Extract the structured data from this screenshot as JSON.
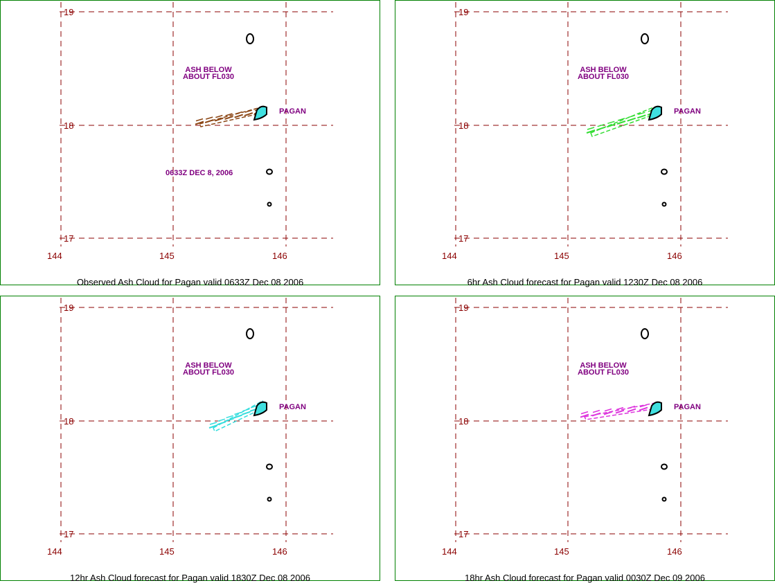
{
  "colors": {
    "grid": "#8b0000",
    "annotation": "#800080",
    "frame": "#008000",
    "island_fill": "#40e0e0"
  },
  "grid_labels": {
    "lat": [
      "19",
      "18",
      "17"
    ],
    "lon": [
      "144",
      "145",
      "146"
    ]
  },
  "panels": [
    {
      "caption": "Observed Ash Cloud for Pagan valid 0633Z Dec 08 2006",
      "ash_note_line1": "ASH BELOW",
      "ash_note_line2": "ABOUT FL030",
      "volcano_label": "PAGAN",
      "timestamp": "0633Z DEC 8, 2006",
      "ash_color": "#8b4513",
      "ash_plume": "west-southwest from Pagan, observed"
    },
    {
      "caption": "6hr Ash Cloud forecast for Pagan valid 1230Z Dec 08 2006",
      "ash_note_line1": "ASH BELOW",
      "ash_note_line2": "ABOUT FL030",
      "volcano_label": "PAGAN",
      "timestamp": "",
      "ash_color": "#33dd33",
      "ash_plume": "west-southwest from Pagan, 6hr"
    },
    {
      "caption": "12hr Ash Cloud forecast for Pagan valid 1830Z Dec 08 2006",
      "ash_note_line1": "ASH BELOW",
      "ash_note_line2": "ABOUT FL030",
      "volcano_label": "PAGAN",
      "timestamp": "",
      "ash_color": "#33dddd",
      "ash_plume": "southwest from Pagan, 12hr"
    },
    {
      "caption": "18hr Ash Cloud forecast for Pagan valid 0030Z Dec 09 2006",
      "ash_note_line1": "ASH BELOW",
      "ash_note_line2": "ABOUT FL030",
      "volcano_label": "PAGAN",
      "timestamp": "",
      "ash_color": "#dd33dd",
      "ash_plume": "west from Pagan, 18hr"
    }
  ]
}
